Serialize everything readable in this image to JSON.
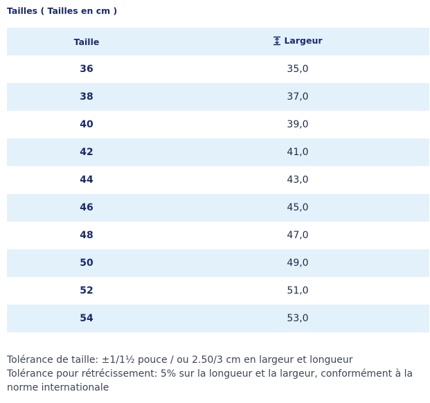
{
  "title": "Tailles ( Tailles en cm )",
  "table": {
    "headers": {
      "size": "Taille",
      "width": "Largeur"
    },
    "rows": [
      {
        "size": "36",
        "width": "35,0"
      },
      {
        "size": "38",
        "width": "37,0"
      },
      {
        "size": "40",
        "width": "39,0"
      },
      {
        "size": "42",
        "width": "41,0"
      },
      {
        "size": "44",
        "width": "43,0"
      },
      {
        "size": "46",
        "width": "45,0"
      },
      {
        "size": "48",
        "width": "47,0"
      },
      {
        "size": "50",
        "width": "49,0"
      },
      {
        "size": "52",
        "width": "51,0"
      },
      {
        "size": "54",
        "width": "53,0"
      }
    ]
  },
  "notes": {
    "tolerance": "Tolérance de taille: ±1/1½ pouce / ou 2.50/3 cm en largeur et longueur",
    "shrinkage": "Tolérance pour rétrécissement: 5% sur la longueur et la largeur, conformément à la norme internationale"
  },
  "icons": {
    "width_header": "width-measure-icon"
  },
  "colors": {
    "heading": "#1b2a6b",
    "row_stripe": "#e3f1fb",
    "note_text": "#3d4457"
  }
}
